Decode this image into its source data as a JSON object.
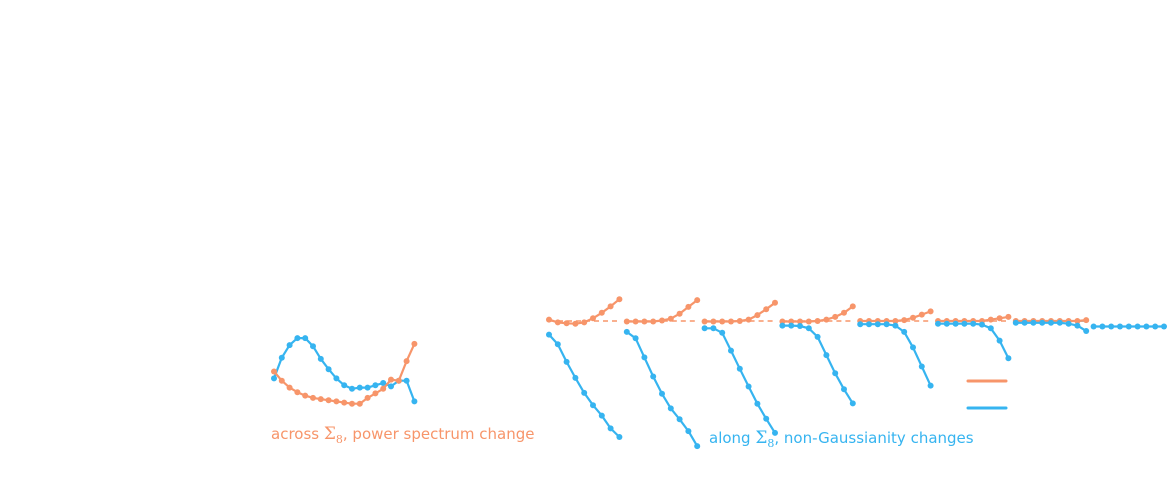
{
  "colors": {
    "orange": "#f7956a",
    "blue": "#36b4f0"
  },
  "captions": {
    "across": {
      "prefix": "across ",
      "symbol": "Σ",
      "sub": "8",
      "suffix": ", power spectrum change"
    },
    "along": {
      "prefix": "along ",
      "symbol": "Σ",
      "sub": "8",
      "suffix": ", non-Gaussianity changes"
    }
  },
  "legend": {
    "items": [
      {
        "color": "orange"
      },
      {
        "color": "blue"
      }
    ]
  },
  "chart_data": [
    {
      "type": "line",
      "panel": "left",
      "series": [
        {
          "color": "blue",
          "values": [
            -1.6,
            0.2,
            1.3,
            1.9,
            1.9,
            1.2,
            0.1,
            -0.8,
            -1.6,
            -2.2,
            -2.5,
            -2.4,
            -2.4,
            -2.2,
            -2.0,
            -2.3,
            -1.8,
            -1.8,
            -3.6
          ]
        },
        {
          "color": "orange",
          "values": [
            -1.0,
            -1.8,
            -2.4,
            -2.8,
            -3.1,
            -3.3,
            -3.4,
            -3.5,
            -3.6,
            -3.7,
            -3.8,
            -3.8,
            -3.3,
            -2.9,
            -2.5,
            -1.7,
            -1.8,
            -0.1,
            1.4
          ]
        }
      ]
    },
    {
      "type": "line",
      "panel": "right",
      "series": [
        {
          "color": "orange",
          "dashed": true,
          "values": [
            [
              0,
              0,
              0,
              0,
              0,
              0,
              0,
              0,
              0
            ],
            [
              0,
              0,
              0,
              0,
              0,
              0,
              0,
              0,
              0
            ],
            [
              0,
              0,
              0,
              0,
              0,
              0,
              0,
              0,
              0
            ],
            [
              0,
              0,
              0,
              0,
              0,
              0,
              0,
              0,
              0
            ],
            [
              0,
              0,
              0,
              0,
              0,
              0,
              0,
              0,
              0
            ],
            [
              0,
              0,
              0,
              0,
              0,
              0,
              0,
              0,
              0
            ],
            [
              0,
              0,
              0,
              0,
              0,
              0,
              0,
              0,
              0
            ]
          ]
        },
        {
          "color": "blue",
          "dashed": true,
          "values": [
            [],
            [],
            [],
            [],
            [],
            [],
            [
              0,
              0,
              0,
              0,
              0,
              0,
              0,
              0,
              0
            ]
          ]
        },
        {
          "color": "orange",
          "values": [
            [
              0.3,
              -0.3,
              -0.5,
              -0.6,
              -0.3,
              0.6,
              1.8,
              3.2,
              4.8
            ],
            [
              -0.1,
              -0.1,
              -0.1,
              -0.1,
              0.1,
              0.5,
              1.6,
              3.1,
              4.6
            ],
            [
              -0.1,
              -0.1,
              -0.1,
              -0.1,
              0.0,
              0.3,
              1.3,
              2.6,
              4.0
            ],
            [
              -0.1,
              -0.1,
              -0.1,
              -0.1,
              0.0,
              0.3,
              0.9,
              1.8,
              3.2
            ],
            [
              0,
              0,
              0,
              0,
              0,
              0.2,
              0.7,
              1.4,
              2.1
            ],
            [
              0,
              0,
              0,
              0,
              0,
              0,
              0.3,
              0.6,
              0.9
            ],
            [
              0,
              0,
              0,
              0,
              0,
              0,
              0,
              0,
              0.2
            ]
          ]
        },
        {
          "color": "blue",
          "values": [
            [
              -3,
              -5.1,
              -9,
              -12.5,
              -15.8,
              -18.5,
              -20.8,
              -23.6,
              -25.5
            ],
            [
              -2.4,
              -3.8,
              -8,
              -12.2,
              -16,
              -19.2,
              -21.6,
              -24.2,
              -27.5
            ],
            [
              -1.6,
              -1.6,
              -2.6,
              -6.5,
              -10.5,
              -14.4,
              -18.2,
              -21.5,
              -24.6
            ],
            [
              -1.0,
              -1.0,
              -1.1,
              -1.6,
              -3.5,
              -7.5,
              -11.5,
              -15.0,
              -18.1
            ],
            [
              -0.7,
              -0.7,
              -0.7,
              -0.7,
              -1.0,
              -2.4,
              -5.8,
              -10,
              -14.2
            ],
            [
              -0.6,
              -0.6,
              -0.6,
              -0.6,
              -0.6,
              -0.8,
              -1.6,
              -4.3,
              -8.2
            ],
            [
              -0.4,
              -0.4,
              -0.4,
              -0.4,
              -0.4,
              -0.4,
              -0.6,
              -1.0,
              -2.2
            ],
            [
              -1.2,
              -1.2,
              -1.2,
              -1.2,
              -1.2,
              -1.2,
              -1.2,
              -1.2,
              -1.2
            ]
          ]
        }
      ]
    }
  ]
}
